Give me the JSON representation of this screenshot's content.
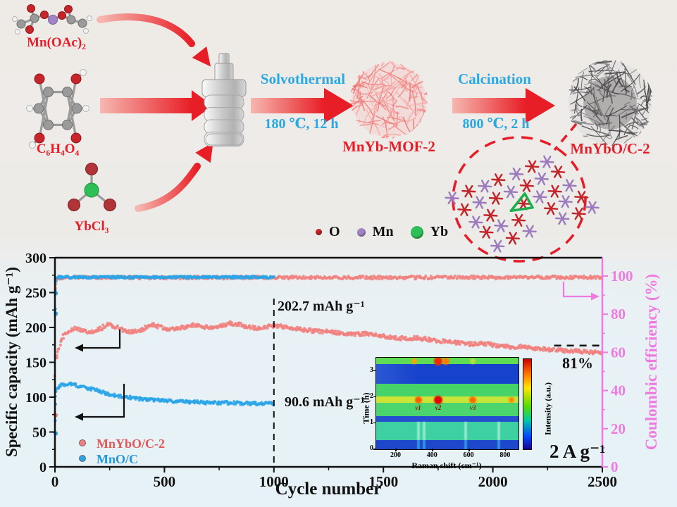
{
  "scheme": {
    "precursors": [
      {
        "label": "Mn(OAc)₂"
      },
      {
        "label": "C₆H₄O₄"
      },
      {
        "label": "YbCl₃"
      }
    ],
    "steps": [
      {
        "name": "Solvothermal",
        "condition": "180 ℃, 12 h"
      },
      {
        "name": "Calcination",
        "condition": "800 ℃, 2 h"
      }
    ],
    "products": [
      {
        "label": "MnYb-MOF-2"
      },
      {
        "label": "MnYbO/C-2"
      }
    ],
    "atom_legend": [
      {
        "symbol": "O",
        "color": "#c6252b",
        "size": 9
      },
      {
        "symbol": "Mn",
        "color": "#a385c6",
        "size": 12
      },
      {
        "symbol": "Yb",
        "color": "#2fbf57",
        "size": 18
      }
    ],
    "label_color": "#e81c28",
    "step_color": "#29a8e2"
  },
  "chart_data": {
    "type": "scatter",
    "xlabel": "Cycle number",
    "ylabel_left": "Specific capacity (mAh g⁻¹)",
    "ylabel_right": "Coulombic efficiency (%)",
    "xlim": [
      0,
      2500
    ],
    "ylim_left": [
      0,
      300
    ],
    "ylim_right": [
      0,
      100
    ],
    "xticks": [
      0,
      500,
      1000,
      1500,
      2000,
      2500
    ],
    "yticks_left": [
      0,
      50,
      100,
      150,
      200,
      250,
      300
    ],
    "yticks_right": [
      0,
      20,
      40,
      60,
      80,
      100
    ],
    "grid": false,
    "right_axis_color": "#ee7ce0",
    "series": [
      {
        "name": "MnYbO/C-2 capacity",
        "axis": "left",
        "color": "#f1807e",
        "points": [
          [
            1,
            75
          ],
          [
            3,
            155
          ],
          [
            8,
            160
          ],
          [
            20,
            172
          ],
          [
            40,
            188
          ],
          [
            70,
            196
          ],
          [
            100,
            199
          ],
          [
            130,
            195
          ],
          [
            160,
            193
          ],
          [
            200,
            197
          ],
          [
            240,
            204
          ],
          [
            280,
            201
          ],
          [
            320,
            195
          ],
          [
            360,
            194
          ],
          [
            400,
            197
          ],
          [
            440,
            204
          ],
          [
            480,
            201
          ],
          [
            520,
            197
          ],
          [
            560,
            199
          ],
          [
            600,
            201
          ],
          [
            640,
            204
          ],
          [
            680,
            201
          ],
          [
            720,
            199
          ],
          [
            760,
            202
          ],
          [
            800,
            206
          ],
          [
            840,
            204
          ],
          [
            880,
            201
          ],
          [
            920,
            199
          ],
          [
            960,
            201
          ],
          [
            1000,
            202.7
          ],
          [
            1060,
            200
          ],
          [
            1120,
            197
          ],
          [
            1180,
            195
          ],
          [
            1240,
            194
          ],
          [
            1300,
            192
          ],
          [
            1360,
            190
          ],
          [
            1420,
            191
          ],
          [
            1480,
            188
          ],
          [
            1540,
            186
          ],
          [
            1600,
            184
          ],
          [
            1660,
            185
          ],
          [
            1720,
            182
          ],
          [
            1780,
            180
          ],
          [
            1840,
            178
          ],
          [
            1900,
            176
          ],
          [
            1960,
            177
          ],
          [
            2020,
            174
          ],
          [
            2080,
            172
          ],
          [
            2140,
            173
          ],
          [
            2200,
            170
          ],
          [
            2260,
            168
          ],
          [
            2320,
            167
          ],
          [
            2380,
            166
          ],
          [
            2440,
            165
          ],
          [
            2500,
            163
          ]
        ]
      },
      {
        "name": "MnO/C capacity",
        "axis": "left",
        "color": "#2aa4e8",
        "points": [
          [
            1,
            50
          ],
          [
            2,
            75
          ],
          [
            5,
            100
          ],
          [
            10,
            112
          ],
          [
            30,
            117
          ],
          [
            60,
            119
          ],
          [
            90,
            117
          ],
          [
            120,
            115
          ],
          [
            150,
            113
          ],
          [
            200,
            109
          ],
          [
            250,
            104
          ],
          [
            300,
            101
          ],
          [
            350,
            99
          ],
          [
            400,
            97
          ],
          [
            450,
            96
          ],
          [
            500,
            95
          ],
          [
            550,
            94
          ],
          [
            600,
            93
          ],
          [
            650,
            93
          ],
          [
            700,
            92
          ],
          [
            750,
            92
          ],
          [
            800,
            92
          ],
          [
            850,
            91
          ],
          [
            900,
            91
          ],
          [
            950,
            91
          ],
          [
            1000,
            90.6
          ]
        ]
      },
      {
        "name": "MnYbO/C-2 coulombic efficiency",
        "axis": "right",
        "color": "#f1807e",
        "points": [
          [
            1,
            80
          ],
          [
            3,
            96
          ],
          [
            6,
            99.2
          ],
          [
            2500,
            99.3
          ]
        ]
      },
      {
        "name": "MnO/C coulombic efficiency",
        "axis": "right",
        "color": "#2aa4e8",
        "points": [
          [
            1,
            83
          ],
          [
            3,
            97
          ],
          [
            6,
            99.4
          ],
          [
            1000,
            99.4
          ]
        ]
      }
    ],
    "extra_points": [
      {
        "series": 0,
        "axis": "left",
        "color": "#f1807e",
        "pts": [
          [
            4,
            74
          ]
        ]
      },
      {
        "series": 1,
        "axis": "left",
        "color": "#2aa4e8",
        "pts": [
          [
            4,
            249
          ],
          [
            4,
            220
          ],
          [
            4,
            48
          ]
        ]
      }
    ],
    "legend": [
      {
        "label": "MnYbO/C-2",
        "color": "#e05858"
      },
      {
        "label": "MnO/C",
        "color": "#1e96e0"
      }
    ],
    "annotations": {
      "pink_at_1000": "202.7 mAh g⁻¹",
      "blue_at_1000": "90.6 mAh g⁻¹",
      "retention": "81%",
      "rate": "2 A g⁻¹"
    },
    "dashed_vline_x": 1000,
    "dashed_hline": {
      "y_left_units": 174,
      "x_from": 2280,
      "x_to": 2500
    },
    "inset": {
      "type": "heatmap",
      "xlabel": "Raman shift (cm⁻¹)",
      "ylabel": "Time (h)",
      "colorbar_label": "Intensity (a.u.)",
      "xticks": [
        200,
        400,
        600,
        800
      ],
      "yticks": [
        0,
        1,
        2,
        3
      ],
      "x_range": [
        90,
        870
      ],
      "y_range": [
        0,
        3.5
      ],
      "peaks": [
        {
          "label": "v1",
          "x": 320
        },
        {
          "label": "v2",
          "x": 430
        },
        {
          "label": "v3",
          "x": 620
        }
      ],
      "bands": [
        {
          "h": 9,
          "color": "#5fdc55"
        },
        {
          "h": 28,
          "color": "linear-gradient(90deg,#2b58d4 0%,#1742cc 30%,#1742cc 100%)"
        },
        {
          "h": 18,
          "color": "#46d468"
        },
        {
          "h": 9,
          "color": "linear-gradient(90deg,#cfe434,#c2e43c)"
        },
        {
          "h": 19,
          "color": "#4cd46e"
        },
        {
          "h": 8,
          "color": "#2450d0"
        },
        {
          "h": 26,
          "color": "#3ed0a2"
        },
        {
          "h": 13,
          "color": "#1d48cc"
        }
      ],
      "hotspots": [
        {
          "band": 0,
          "x": 430,
          "color": "#f22800",
          "r": 6
        },
        {
          "band": 0,
          "x": 472,
          "color": "#ff7a00",
          "r": 5
        },
        {
          "band": 0,
          "x": 300,
          "color": "#ffa200",
          "r": 4
        },
        {
          "band": 0,
          "x": 620,
          "color": "#b8e03a",
          "r": 4
        },
        {
          "band": 3,
          "x": 320,
          "color": "#ff5a00",
          "r": 5
        },
        {
          "band": 3,
          "x": 430,
          "color": "#e60000",
          "r": 6
        },
        {
          "band": 3,
          "x": 620,
          "color": "#ff6a00",
          "r": 5
        },
        {
          "band": 3,
          "x": 830,
          "color": "#ff8800",
          "r": 4
        }
      ],
      "streaks": [
        320,
        352,
        580,
        760
      ]
    }
  }
}
